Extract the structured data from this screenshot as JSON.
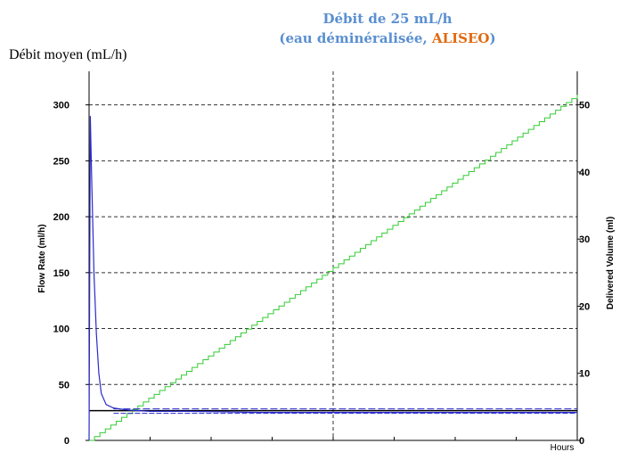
{
  "header": {
    "title_line1": "Débit de 25 mL/h",
    "title_line2_pre": "(eau déminéralisée, ",
    "title_line2_brand": "ALISEO",
    "title_line2_post": ")",
    "top_left_label": "Débit moyen (mL/h)"
  },
  "colors": {
    "title": "#5a8fd0",
    "brand": "#e06a12",
    "flow": "#2a2acc",
    "volume": "#33cc33",
    "target": "#000000"
  },
  "chart_data": {
    "type": "line",
    "xlabel": "Hours",
    "ylabel": "Flow Rate (ml/h)",
    "y2label": "Delivered Volume (ml)",
    "ylim": [
      0,
      330
    ],
    "y2lim": [
      0,
      55
    ],
    "xlim": [
      0,
      2
    ],
    "yticks": [
      "0",
      "50",
      "100",
      "150",
      "200",
      "250",
      "300"
    ],
    "y2ticks": [
      "0",
      "10",
      "20",
      "30",
      "40",
      "50"
    ],
    "grid": true,
    "target_flow": 25,
    "series": [
      {
        "role": "flow",
        "x": [
          0,
          0.005,
          0.01,
          0.02,
          0.03,
          0.04,
          0.05,
          0.07,
          0.1,
          0.13,
          0.17,
          0.25,
          0.4,
          0.7,
          1.0,
          1.5,
          2.0
        ],
        "y": [
          0,
          290,
          240,
          150,
          95,
          60,
          42,
          32,
          29,
          28,
          27,
          26,
          26,
          25,
          25,
          25,
          25
        ]
      },
      {
        "role": "volume",
        "x": [
          0,
          2.0
        ],
        "y": [
          0,
          51.5
        ]
      }
    ]
  }
}
